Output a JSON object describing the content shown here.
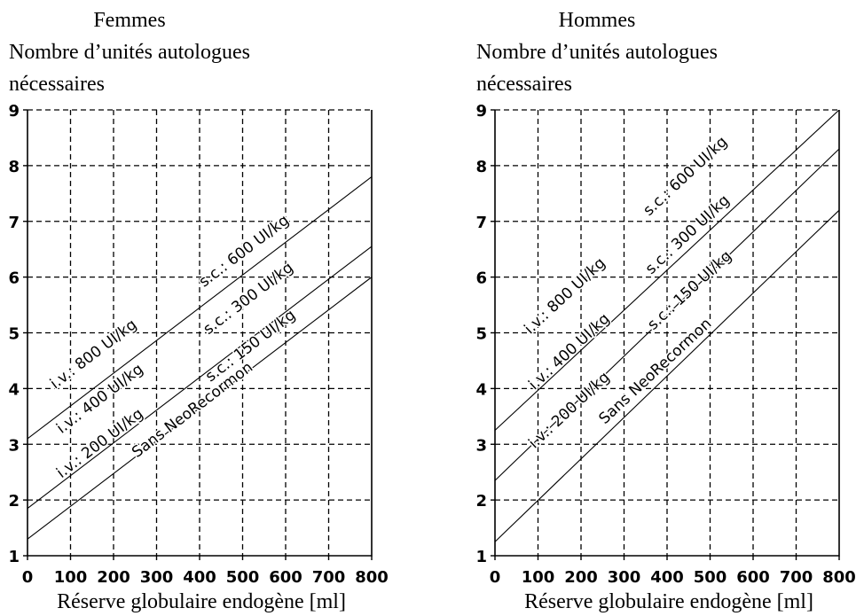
{
  "chart_data": [
    {
      "type": "line",
      "title": "Femmes",
      "ylabel_line1": "Nombre d’unités autologues",
      "ylabel_line2": "nécessaires",
      "xlabel": "Réserve globulaire endogène [ml]",
      "xlim": [
        0,
        800
      ],
      "ylim": [
        1,
        9
      ],
      "xticks": [
        "0",
        "100",
        "200",
        "300",
        "400",
        "500",
        "600",
        "700",
        "800"
      ],
      "yticks": [
        "1",
        "2",
        "3",
        "4",
        "5",
        "6",
        "7",
        "8",
        "9"
      ],
      "grid": true,
      "series": [
        {
          "x": [
            0,
            800
          ],
          "y": [
            3.1,
            7.8
          ]
        },
        {
          "x": [
            0,
            800
          ],
          "y": [
            1.85,
            6.55
          ]
        },
        {
          "x": [
            0,
            800
          ],
          "y": [
            1.3,
            6.0
          ]
        }
      ],
      "annotations": [
        {
          "text": "i.v.: 800 UI/kg",
          "x": 160,
          "y": 4.55
        },
        {
          "text": "s.c.: 600 UI/kg",
          "x": 510,
          "y": 6.4
        },
        {
          "text": "i.v.: 400 UI/kg",
          "x": 175,
          "y": 3.75
        },
        {
          "text": "s.c.: 300 UI/kg",
          "x": 520,
          "y": 5.55
        },
        {
          "text": "i.v.: 200 UI/kg",
          "x": 175,
          "y": 2.95
        },
        {
          "text": "s.c.: 150 UI/kg",
          "x": 525,
          "y": 4.7
        },
        {
          "text": "Sans NeoRecormon",
          "x": 390,
          "y": 3.55
        }
      ]
    },
    {
      "type": "line",
      "title": "Hommes",
      "ylabel_line1": "Nombre d’unités autologues",
      "ylabel_line2": "nécessaires",
      "xlabel": "Réserve globulaire endogène [ml]",
      "xlim": [
        0,
        800
      ],
      "ylim": [
        1,
        9
      ],
      "xticks": [
        "0",
        "100",
        "200",
        "300",
        "400",
        "500",
        "600",
        "700",
        "800"
      ],
      "yticks": [
        "1",
        "2",
        "3",
        "4",
        "5",
        "6",
        "7",
        "8",
        "9"
      ],
      "grid": true,
      "series": [
        {
          "x": [
            0,
            800
          ],
          "y": [
            3.25,
            9.0
          ]
        },
        {
          "x": [
            0,
            800
          ],
          "y": [
            2.35,
            8.3
          ]
        },
        {
          "x": [
            0,
            800
          ],
          "y": [
            1.25,
            7.2
          ]
        }
      ],
      "annotations": [
        {
          "text": "i.v.: 800 UI/kg",
          "x": 170,
          "y": 5.6
        },
        {
          "text": "s.c.: 600 UI/kg",
          "x": 450,
          "y": 7.75
        },
        {
          "text": "i.v.: 400 UI/kg",
          "x": 180,
          "y": 4.6
        },
        {
          "text": "s.c.: 300 UI/kg",
          "x": 455,
          "y": 6.7
        },
        {
          "text": "i.v.: 200 UI/kg",
          "x": 180,
          "y": 3.55
        },
        {
          "text": "s.c.: 150 UI/kg",
          "x": 460,
          "y": 5.7
        },
        {
          "text": "Sans NeoRecormon",
          "x": 380,
          "y": 4.25
        }
      ]
    }
  ]
}
